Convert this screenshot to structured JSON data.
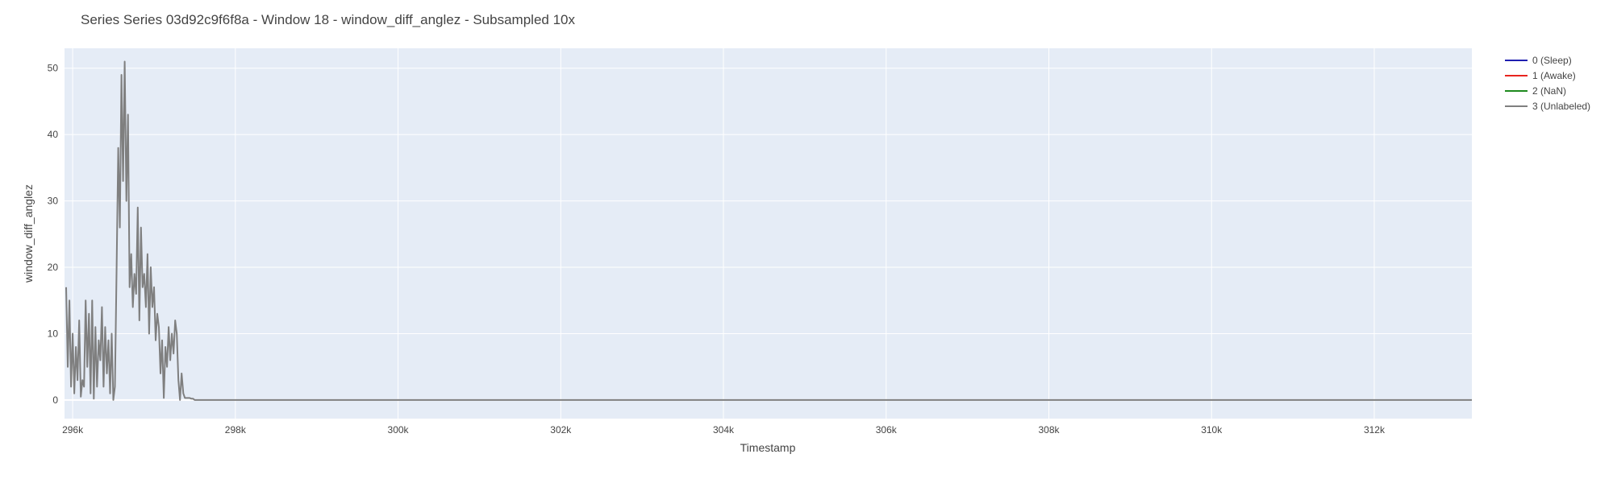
{
  "chart_data": {
    "type": "line",
    "title": "Series Series 03d92c9f6f8a - Window 18 - window_diff_anglez - Subsampled 10x",
    "xlabel": "Timestamp",
    "ylabel": "window_diff_anglez",
    "xlim": [
      295900,
      313200
    ],
    "ylim": [
      -2.8,
      53
    ],
    "x_ticks": [
      {
        "value": 296000,
        "label": "296k"
      },
      {
        "value": 298000,
        "label": "298k"
      },
      {
        "value": 300000,
        "label": "300k"
      },
      {
        "value": 302000,
        "label": "302k"
      },
      {
        "value": 304000,
        "label": "304k"
      },
      {
        "value": 306000,
        "label": "306k"
      },
      {
        "value": 308000,
        "label": "308k"
      },
      {
        "value": 310000,
        "label": "310k"
      },
      {
        "value": 312000,
        "label": "312k"
      }
    ],
    "y_ticks": [
      {
        "value": 0,
        "label": "0"
      },
      {
        "value": 10,
        "label": "10"
      },
      {
        "value": 20,
        "label": "20"
      },
      {
        "value": 30,
        "label": "30"
      },
      {
        "value": 40,
        "label": "40"
      },
      {
        "value": 50,
        "label": "50"
      }
    ],
    "grid": true,
    "legend_position": "top-right",
    "legend": [
      {
        "label": "0 (Sleep)",
        "color": "#1f1fb0"
      },
      {
        "label": "1 (Awake)",
        "color": "#e8241e"
      },
      {
        "label": "2 (NaN)",
        "color": "#1e8a1e"
      },
      {
        "label": "3 (Unlabeled)",
        "color": "#7f7f7f"
      }
    ],
    "series": [
      {
        "name": "3 (Unlabeled)",
        "color": "#7f7f7f",
        "x": [
          295920,
          295940,
          295960,
          295980,
          296000,
          296020,
          296040,
          296060,
          296080,
          296100,
          296120,
          296140,
          296160,
          296180,
          296200,
          296220,
          296240,
          296260,
          296280,
          296300,
          296320,
          296340,
          296360,
          296380,
          296400,
          296420,
          296440,
          296460,
          296480,
          296500,
          296520,
          296540,
          296560,
          296580,
          296600,
          296620,
          296640,
          296660,
          296680,
          296700,
          296720,
          296740,
          296760,
          296780,
          296800,
          296820,
          296840,
          296860,
          296880,
          296900,
          296920,
          296940,
          296960,
          296980,
          297000,
          297020,
          297040,
          297060,
          297080,
          297100,
          297120,
          297140,
          297160,
          297180,
          297200,
          297220,
          297240,
          297260,
          297280,
          297300,
          297320,
          297340,
          297360,
          297380,
          297400,
          297420,
          297440,
          297460,
          297480,
          297500,
          297520,
          297540,
          297560,
          297580,
          297600,
          298000,
          300000,
          302000,
          304000,
          306000,
          308000,
          310000,
          312000,
          313200
        ],
        "values": [
          17,
          5,
          15,
          2,
          10,
          1,
          8,
          3,
          12,
          0.5,
          3,
          2,
          15,
          5,
          13,
          1,
          15,
          0.2,
          11,
          2,
          9,
          6,
          14,
          2,
          11,
          4,
          9,
          1,
          10,
          0,
          2,
          20,
          38,
          26,
          49,
          33,
          51,
          30,
          43,
          17,
          22,
          14,
          19,
          16,
          29,
          12,
          26,
          17,
          19,
          14,
          22,
          10,
          20,
          14,
          17,
          9,
          13,
          11,
          4,
          9,
          0.3,
          8,
          5,
          11,
          6,
          10,
          7,
          12,
          10,
          3,
          0,
          4,
          1,
          0.3,
          0.3,
          0.3,
          0.3,
          0.2,
          0.2,
          0,
          0,
          0,
          0,
          0,
          0,
          0,
          0,
          0,
          0,
          0,
          0,
          0,
          0,
          0
        ]
      }
    ]
  }
}
